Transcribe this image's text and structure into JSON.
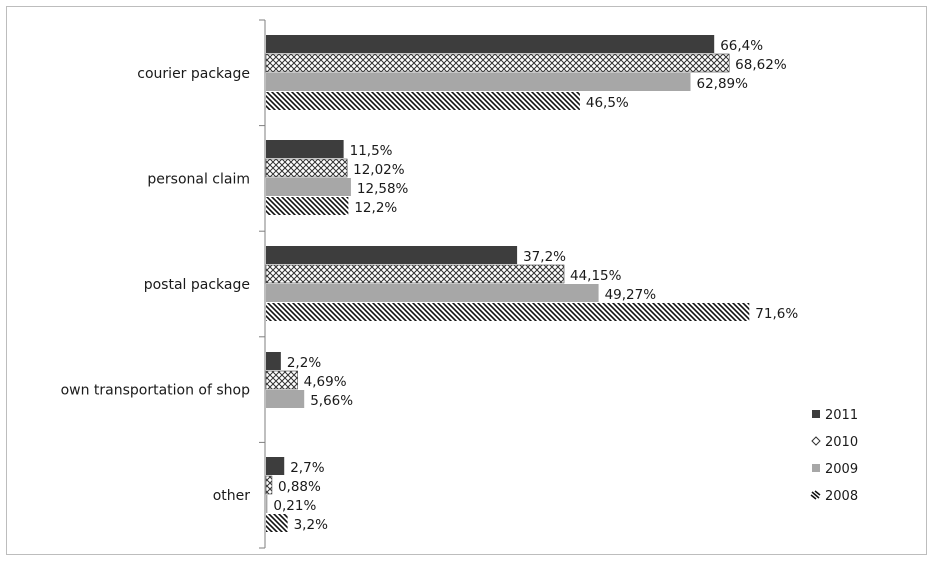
{
  "chart_data": {
    "type": "bar",
    "orientation": "horizontal",
    "title": "",
    "xlabel": "",
    "ylabel": "",
    "xlim": [
      0,
      75
    ],
    "grid": false,
    "legend_position": "bottom-right",
    "categories": [
      "courier package",
      "personal claim",
      "postal package",
      "own transportation of shop",
      "other"
    ],
    "series": [
      {
        "name": "2011",
        "pattern": "solid-dark",
        "color": "#3a3a3a",
        "values": [
          66.4,
          11.5,
          37.2,
          2.2,
          2.7
        ],
        "labels": [
          "66,4%",
          "11,5%",
          "37,2%",
          "2,2%",
          "2,7%"
        ]
      },
      {
        "name": "2010",
        "pattern": "crosshatch",
        "color": "#555555",
        "values": [
          68.62,
          12.02,
          44.15,
          4.69,
          0.88
        ],
        "labels": [
          "68,62%",
          "12,02%",
          "44,15%",
          "4,69%",
          "0,88%"
        ]
      },
      {
        "name": "2009",
        "pattern": "solid-gray",
        "color": "#a5a5a5",
        "values": [
          62.89,
          12.58,
          49.27,
          5.66,
          0.21
        ],
        "labels": [
          "62,89%",
          "12,58%",
          "49,27%",
          "5,66%",
          "0,21%"
        ]
      },
      {
        "name": "2008",
        "pattern": "diagonal",
        "color": "#111111",
        "values": [
          46.5,
          12.2,
          71.6,
          null,
          3.2
        ],
        "labels": [
          "46,5%",
          "12,2%",
          "71,6%",
          "",
          "3,2%"
        ]
      }
    ]
  }
}
